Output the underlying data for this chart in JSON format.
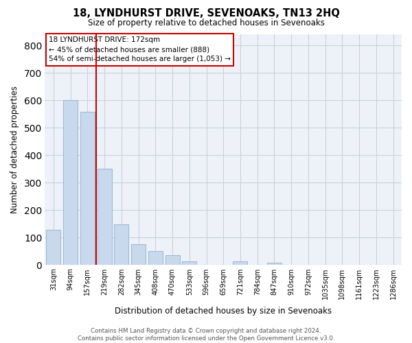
{
  "title": "18, LYNDHURST DRIVE, SEVENOAKS, TN13 2HQ",
  "subtitle": "Size of property relative to detached houses in Sevenoaks",
  "xlabel": "Distribution of detached houses by size in Sevenoaks",
  "ylabel": "Number of detached properties",
  "categories": [
    "31sqm",
    "94sqm",
    "157sqm",
    "219sqm",
    "282sqm",
    "345sqm",
    "408sqm",
    "470sqm",
    "533sqm",
    "596sqm",
    "659sqm",
    "721sqm",
    "784sqm",
    "847sqm",
    "910sqm",
    "972sqm",
    "1035sqm",
    "1098sqm",
    "1161sqm",
    "1223sqm",
    "1286sqm"
  ],
  "values": [
    128,
    600,
    558,
    350,
    148,
    75,
    50,
    35,
    13,
    0,
    0,
    14,
    0,
    8,
    0,
    0,
    0,
    0,
    0,
    0,
    0
  ],
  "bar_color": "#c8d9ee",
  "bar_edgecolor": "#a0b8d8",
  "vline_x_idx": 2,
  "vline_color": "#cc0000",
  "ylim": [
    0,
    840
  ],
  "yticks": [
    0,
    100,
    200,
    300,
    400,
    500,
    600,
    700,
    800
  ],
  "annotation_line1": "18 LYNDHURST DRIVE: 172sqm",
  "annotation_line2": "← 45% of detached houses are smaller (888)",
  "annotation_line3": "54% of semi-detached houses are larger (1,053) →",
  "footer_line1": "Contains HM Land Registry data © Crown copyright and database right 2024.",
  "footer_line2": "Contains public sector information licensed under the Open Government Licence v3.0.",
  "background_color": "#ffffff",
  "plot_bg_color": "#eef2f8",
  "grid_color": "#c8d0e0"
}
